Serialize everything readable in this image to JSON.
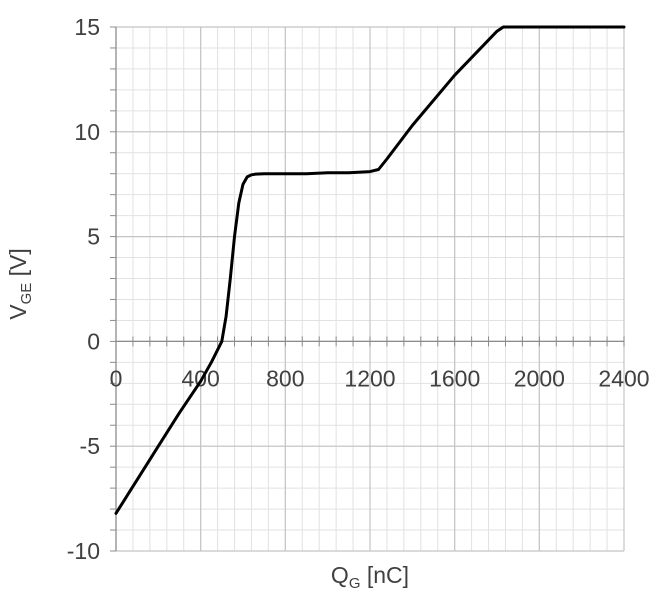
{
  "chart_data": {
    "type": "line",
    "x_label_main": "Q",
    "x_label_sub": "G",
    "x_label_unit": " [nC]",
    "y_label_main": "V",
    "y_label_sub": "GE",
    "y_label_unit": " [V]",
    "xlim": [
      0,
      2400
    ],
    "ylim": [
      -10,
      15
    ],
    "x_ticks": [
      "0",
      "400",
      "800",
      "1200",
      "1600",
      "2000",
      "2400"
    ],
    "y_ticks": [
      "15",
      "10",
      "5",
      "0",
      "-5",
      "-10"
    ],
    "grid": true,
    "line_color": "#000000",
    "series": [
      {
        "x": [
          0,
          100,
          200,
          300,
          400,
          450,
          500,
          520,
          540,
          560,
          580,
          600,
          620,
          640,
          660,
          700,
          800,
          900,
          1000,
          1100,
          1200,
          1240,
          1280,
          1400,
          1600,
          1800,
          1830,
          2000,
          2400
        ],
        "y": [
          -8.2,
          -6.6,
          -5.0,
          -3.4,
          -1.9,
          -1.0,
          0.0,
          1.2,
          3.0,
          5.0,
          6.6,
          7.5,
          7.85,
          7.95,
          7.98,
          8.0,
          8.0,
          8.0,
          8.05,
          8.05,
          8.1,
          8.2,
          8.7,
          10.3,
          12.7,
          14.8,
          15.0,
          15.0,
          15.0
        ]
      }
    ]
  }
}
